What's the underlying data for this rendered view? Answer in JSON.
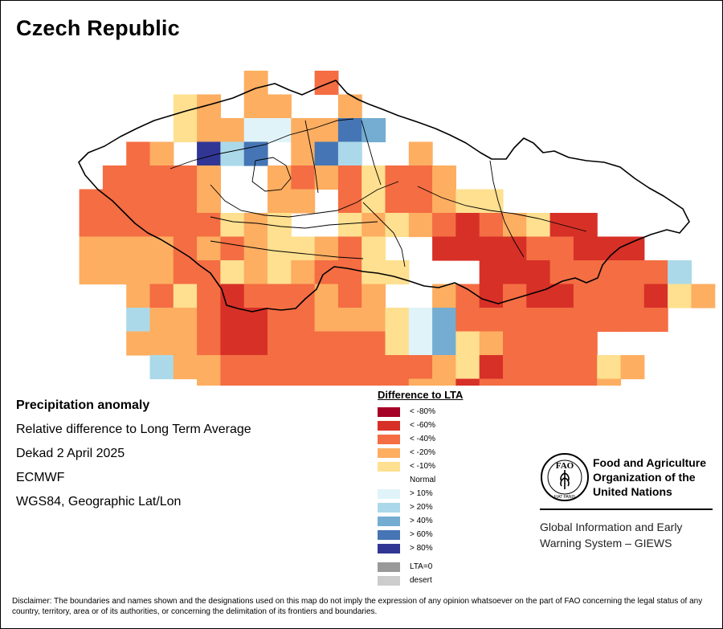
{
  "title": "Czech Republic",
  "info": {
    "heading": "Precipitation anomaly",
    "line1": "Relative difference to Long Term Average",
    "line2": "Dekad 2 April 2025",
    "line3": "ECMWF",
    "line4": "WGS84, Geographic Lat/Lon"
  },
  "legend": {
    "title": "Difference to LTA",
    "items": [
      {
        "label": "< -80%",
        "color": "#a50026"
      },
      {
        "label": "< -60%",
        "color": "#d73027"
      },
      {
        "label": "< -40%",
        "color": "#f46d43"
      },
      {
        "label": "< -20%",
        "color": "#fdae61"
      },
      {
        "label": "< -10%",
        "color": "#fee090"
      },
      {
        "label": "Normal",
        "color": "#ffffff"
      },
      {
        "label": "> 10%",
        "color": "#e0f3f8"
      },
      {
        "label": "> 20%",
        "color": "#abd9e9"
      },
      {
        "label": "> 40%",
        "color": "#74add1"
      },
      {
        "label": "> 60%",
        "color": "#4575b4"
      },
      {
        "label": "> 80%",
        "color": "#313695"
      },
      {
        "label": "LTA=0",
        "color": "#999999"
      },
      {
        "label": "desert",
        "color": "#cccccc"
      }
    ]
  },
  "grid": {
    "palette": {
      "M": "#d73027",
      "O": "#f46d43",
      "A": "#fdae61",
      "Y": "#fee090",
      "N": "#ffffff",
      "C": "#e0f3f8",
      "L": "#abd9e9",
      "B": "#74add1",
      "D": "#4575b4",
      "V": "#313695"
    },
    "rows": [
      ".........A..O..........",
      "......YA.AA..A.........",
      "......YAACCAADB........",
      "....OA.VLD.ADLN.A......",
      "...OOOOA..AOAOYOOA.....",
      "..OOOOOA..AA.OYOOAYY...",
      "..OOOOOOYAYN.YAYAOMOAYMM.",
      "..AAAAOAOAYYAOYNNMMMMOOMMM",
      "..AAAAOOYAYAOOYYNNNMMMOOOOOL",
      "...NAOYOMOOOAOANNAOMOMMOOOMYA",
      "....LAAOMMOOAAAYCBOOOOOOOOO",
      "....AAAOMMOOOOOYCBYAOOOONN",
      ".....LAAOOOOOOOOOAYMOOOOYA",
      ".......AOOOOOOOOAAMOOOOOA",
      ".......OOOOAO........MMAOO"
    ]
  },
  "fao": {
    "line1": "Food and Agriculture",
    "line2": "Organization of the",
    "line3": "United Nations",
    "logo_text": "FAO",
    "motto": "FIAT PANIS"
  },
  "giews": {
    "line1": "Global Information and Early",
    "line2": "Warning System – GIEWS"
  },
  "disclaimer": "Disclaimer: The boundaries and names shown and the designations used on this map do not imply the expression of any opinion whatsoever on the part of FAO concerning the legal status of any country, territory, area or of its authorities, or concerning the delimitation of its frontiers and boundaries."
}
